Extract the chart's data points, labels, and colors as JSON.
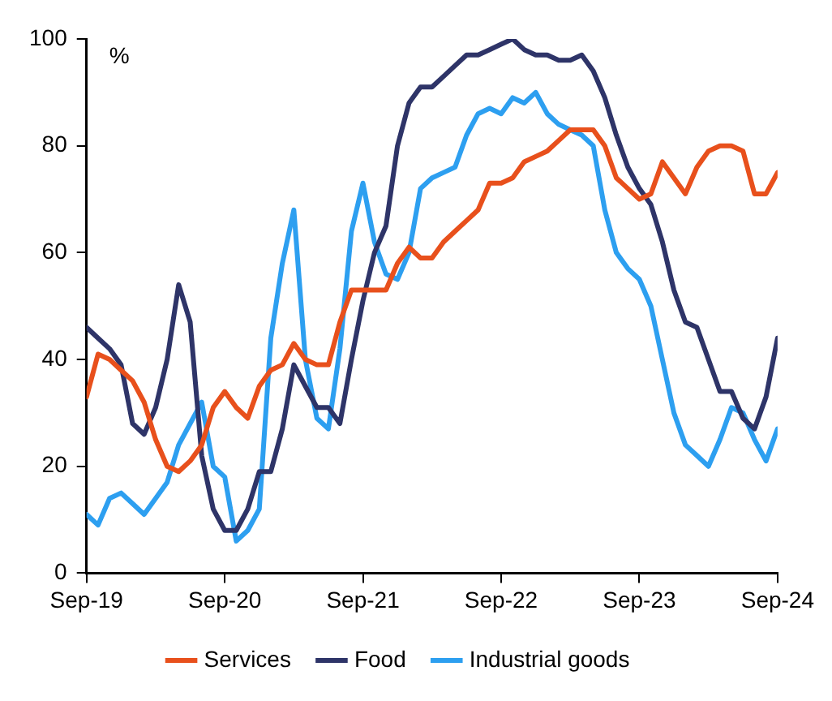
{
  "chart_data": {
    "type": "line",
    "x": [
      "2019-09",
      "2019-10",
      "2019-11",
      "2019-12",
      "2020-01",
      "2020-02",
      "2020-03",
      "2020-04",
      "2020-05",
      "2020-06",
      "2020-07",
      "2020-08",
      "2020-09",
      "2020-10",
      "2020-11",
      "2020-12",
      "2021-01",
      "2021-02",
      "2021-03",
      "2021-04",
      "2021-05",
      "2021-06",
      "2021-07",
      "2021-08",
      "2021-09",
      "2021-10",
      "2021-11",
      "2021-12",
      "2022-01",
      "2022-02",
      "2022-03",
      "2022-04",
      "2022-05",
      "2022-06",
      "2022-07",
      "2022-08",
      "2022-09",
      "2022-10",
      "2022-11",
      "2022-12",
      "2023-01",
      "2023-02",
      "2023-03",
      "2023-04",
      "2023-05",
      "2023-06",
      "2023-07",
      "2023-08",
      "2023-09",
      "2023-10",
      "2023-11",
      "2023-12",
      "2024-01",
      "2024-02",
      "2024-03",
      "2024-04",
      "2024-05",
      "2024-06",
      "2024-07",
      "2024-08",
      "2024-09"
    ],
    "series": [
      {
        "name": "Services",
        "color": "#e8501c",
        "values": [
          33,
          41,
          40,
          38,
          36,
          32,
          25,
          20,
          19,
          21,
          24,
          31,
          34,
          31,
          29,
          35,
          38,
          39,
          43,
          40,
          39,
          39,
          47,
          53,
          53,
          53,
          53,
          58,
          61,
          59,
          59,
          62,
          64,
          66,
          68,
          73,
          73,
          74,
          77,
          78,
          79,
          81,
          83,
          83,
          83,
          80,
          74,
          72,
          70,
          71,
          77,
          74,
          71,
          76,
          79,
          80,
          80,
          79,
          71,
          71,
          75
        ]
      },
      {
        "name": "Food",
        "color": "#2e3468",
        "values": [
          46,
          44,
          42,
          39,
          28,
          26,
          31,
          40,
          54,
          47,
          22,
          12,
          8,
          8,
          12,
          19,
          19,
          27,
          39,
          35,
          31,
          31,
          28,
          40,
          51,
          60,
          65,
          80,
          88,
          91,
          91,
          93,
          95,
          97,
          97,
          98,
          99,
          100,
          98,
          97,
          97,
          96,
          96,
          97,
          94,
          89,
          82,
          76,
          72,
          69,
          62,
          53,
          47,
          46,
          40,
          34,
          34,
          29,
          27,
          33,
          44
        ]
      },
      {
        "name": "Industrial goods",
        "color": "#2d9ff0",
        "values": [
          11,
          9,
          14,
          15,
          13,
          11,
          14,
          17,
          24,
          28,
          32,
          20,
          18,
          6,
          8,
          12,
          44,
          58,
          68,
          40,
          29,
          27,
          42,
          64,
          73,
          62,
          56,
          55,
          60,
          72,
          74,
          75,
          76,
          82,
          86,
          87,
          86,
          89,
          88,
          90,
          86,
          84,
          83,
          82,
          80,
          68,
          60,
          57,
          55,
          50,
          40,
          30,
          24,
          22,
          20,
          25,
          31,
          30,
          25,
          21,
          27
        ]
      }
    ],
    "xlim": [
      "2019-09",
      "2024-09"
    ],
    "xticks": [
      {
        "value": "2019-09",
        "label": "Sep-19"
      },
      {
        "value": "2020-09",
        "label": "Sep-20"
      },
      {
        "value": "2021-09",
        "label": "Sep-21"
      },
      {
        "value": "2022-09",
        "label": "Sep-22"
      },
      {
        "value": "2023-09",
        "label": "Sep-23"
      },
      {
        "value": "2024-09",
        "label": "Sep-24"
      }
    ],
    "ylim": [
      0,
      100
    ],
    "yticks": [
      0,
      20,
      40,
      60,
      80,
      100
    ],
    "annotations": [
      "%"
    ],
    "grid": false,
    "legend": "bottom",
    "marker": "none",
    "line_style": "solid"
  }
}
